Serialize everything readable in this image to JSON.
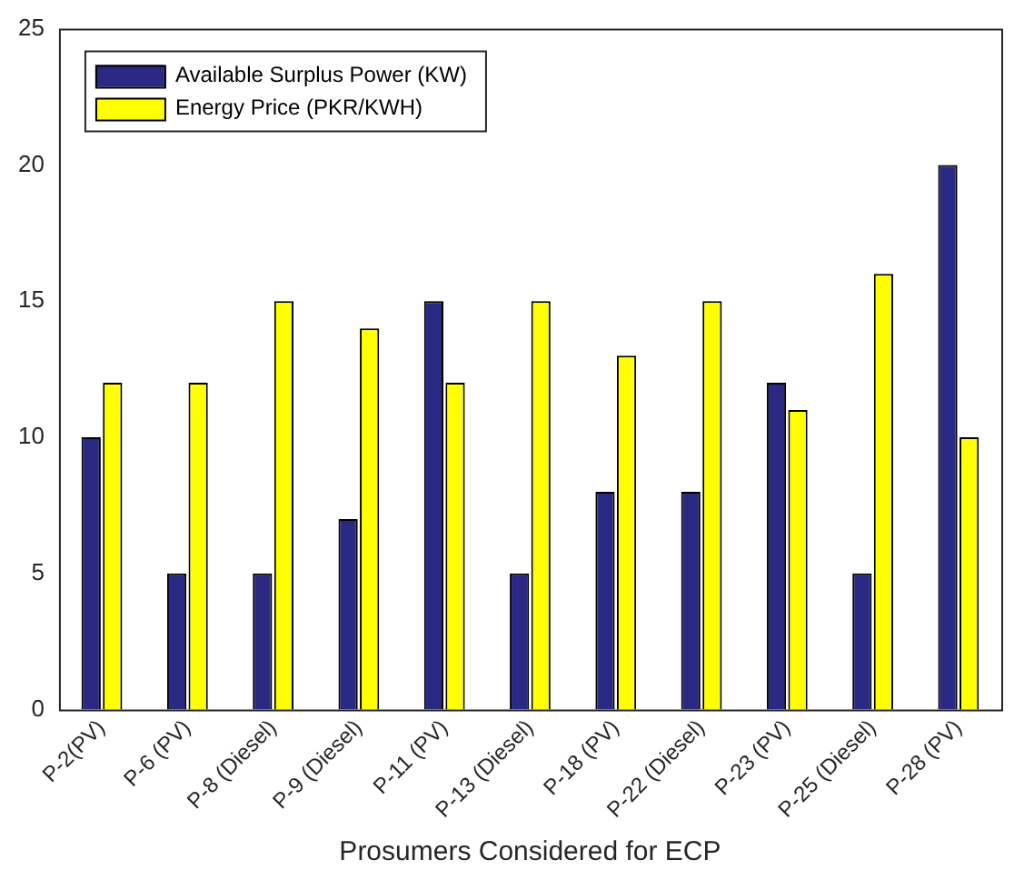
{
  "chart_data": {
    "type": "bar",
    "xlabel": "Prosumers Considered for ECP",
    "categories": [
      "P-2(PV)",
      "P-6 (PV)",
      "P-8 (Diesel)",
      "P-9 (Diesel)",
      "P-11 (PV)",
      "P-13 (Diesel)",
      "P-18 (PV)",
      "P-22 (Diesel)",
      "P-23 (PV)",
      "P-25 (Diesel)",
      "P-28 (PV)"
    ],
    "series": [
      {
        "name": "Available Surplus Power (KW)",
        "color": "#2a2a84",
        "values": [
          10,
          5,
          5,
          7,
          15,
          5,
          8,
          8,
          12,
          5,
          20
        ]
      },
      {
        "name": "Energy Price (PKR/KWH)",
        "color": "#ffff00",
        "values": [
          12,
          12,
          15,
          14,
          12,
          15,
          13,
          15,
          11,
          16,
          10
        ]
      }
    ],
    "ylim": [
      0,
      25
    ],
    "yticks": [
      0,
      5,
      10,
      15,
      20,
      25
    ],
    "grid": false,
    "legend": "top left"
  }
}
